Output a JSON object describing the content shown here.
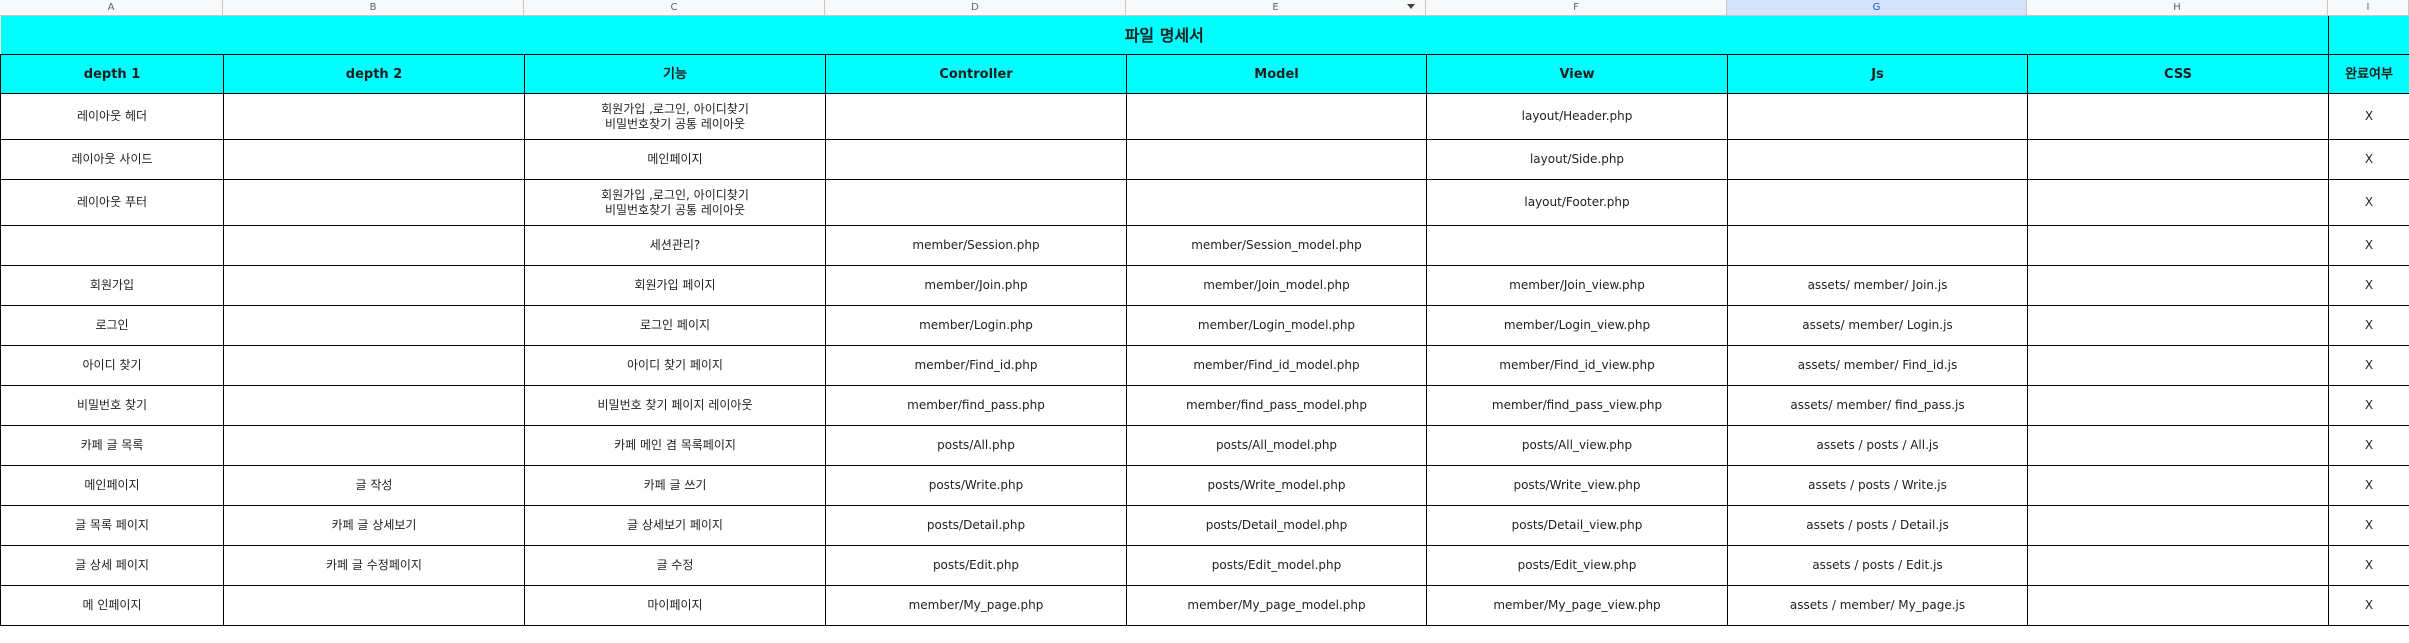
{
  "column_headers": [
    "A",
    "B",
    "C",
    "D",
    "E",
    "F",
    "G",
    "H",
    "I"
  ],
  "title": "파일 명세서",
  "headers": [
    "depth 1",
    "depth 2",
    "기능",
    "Controller",
    "Model",
    "View",
    "Js",
    "CSS",
    "완료여부"
  ],
  "rows": [
    [
      "레이아웃 헤더",
      "",
      "회원가입 ,로그인, 아이디찾기\n비밀번호찾기 공통 레이아웃",
      "",
      "",
      "layout/Header.php",
      "",
      "",
      "X"
    ],
    [
      "레이아웃 사이드",
      "",
      "메인페이지",
      "",
      "",
      "layout/Side.php",
      "",
      "",
      "X"
    ],
    [
      "레이아웃 푸터",
      "",
      "회원가입 ,로그인, 아이디찾기\n비밀번호찾기 공통 레이아웃",
      "",
      "",
      "layout/Footer.php",
      "",
      "",
      "X"
    ],
    [
      "",
      "",
      "세션관리?",
      "member/Session.php",
      "member/Session_model.php",
      "",
      "",
      "",
      "X"
    ],
    [
      "회원가입",
      "",
      "회원가입 페이지",
      "member/Join.php",
      "member/Join_model.php",
      "member/Join_view.php",
      "assets/ member/ Join.js",
      "",
      "X"
    ],
    [
      "로그인",
      "",
      "로그인 페이지",
      "member/Login.php",
      "member/Login_model.php",
      "member/Login_view.php",
      "assets/ member/ Login.js",
      "",
      "X"
    ],
    [
      "아이디 찾기",
      "",
      "아이디 찾기 페이지",
      "member/Find_id.php",
      "member/Find_id_model.php",
      "member/Find_id_view.php",
      "assets/ member/ Find_id.js",
      "",
      "X"
    ],
    [
      "비밀번호 찾기",
      "",
      "비밀번호 찾기 페이지 레이아웃",
      "member/find_pass.php",
      "member/find_pass_model.php",
      "member/find_pass_view.php",
      "assets/ member/ find_pass.js",
      "",
      "X"
    ],
    [
      "카페 글 목록",
      "",
      "카페 메인 겸 목록페이지",
      "posts/All.php",
      "posts/All_model.php",
      "posts/All_view.php",
      "assets / posts / All.js",
      "",
      "X"
    ],
    [
      "메인페이지",
      "글 작성",
      "카페 글 쓰기",
      "posts/Write.php",
      "posts/Write_model.php",
      "posts/Write_view.php",
      "assets / posts / Write.js",
      "",
      "X"
    ],
    [
      "글 목록 페이지",
      "카페 글 상세보기",
      "글 상세보기 페이지",
      "posts/Detail.php",
      "posts/Detail_model.php",
      "posts/Detail_view.php",
      "assets / posts / Detail.js",
      "",
      "X"
    ],
    [
      "글 상세 페이지",
      "카페 글 수정페이지",
      "글 수정",
      "posts/Edit.php",
      "posts/Edit_model.php",
      "posts/Edit_view.php",
      "assets / posts / Edit.js",
      "",
      "X"
    ],
    [
      "메 인페이지",
      "",
      "마이페이지",
      "member/My_page.php",
      "member/My_page_model.php",
      "member/My_page_view.php",
      "assets / member/ My_page.js",
      "",
      "X"
    ]
  ]
}
